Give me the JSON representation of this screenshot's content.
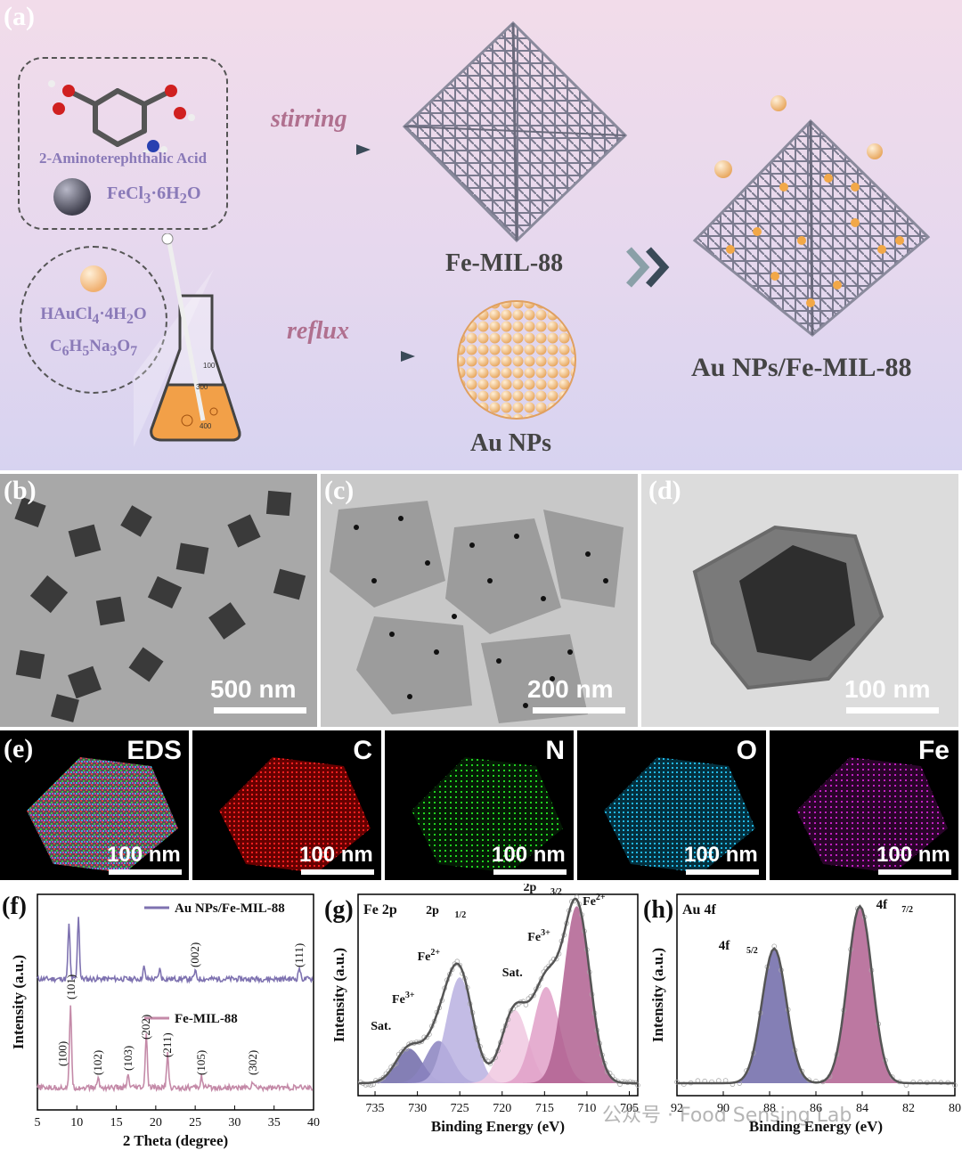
{
  "scheme": {
    "label": "(a)",
    "acid": "2-Aminoterephthalic Acid",
    "fecl3": "FeCl",
    "fecl3_sub1": "3",
    "fecl3_mid": "·6H",
    "fecl3_sub2": "2",
    "fecl3_end": "O",
    "haucl4": "HAuCl",
    "haucl4_sub1": "4",
    "haucl4_mid": "·4H",
    "haucl4_sub2": "2",
    "haucl4_end": "O",
    "citrate_a": "C",
    "citrate_s1": "6",
    "citrate_b": "H",
    "citrate_s2": "5",
    "citrate_c": "Na",
    "citrate_s3": "3",
    "citrate_d": "O",
    "citrate_s4": "7",
    "stirring": "stirring",
    "reflux": "reflux",
    "fe_mil": "Fe-MIL-88",
    "au_nps": "Au NPs",
    "composite": "Au NPs/Fe-MIL-88",
    "flask_marks": [
      "100",
      "300",
      "400"
    ]
  },
  "tem": [
    {
      "label": "(b)",
      "scale": "500 nm"
    },
    {
      "label": "(c)",
      "scale": "200 nm"
    },
    {
      "label": "(d)",
      "scale": "100 nm"
    }
  ],
  "eds": {
    "label": "(e)",
    "maps": [
      {
        "title": "EDS",
        "scale": "100 nm",
        "color": "#c9a0b8"
      },
      {
        "title": "C",
        "scale": "100 nm",
        "color": "#e01818"
      },
      {
        "title": "N",
        "scale": "100 nm",
        "color": "#18b818"
      },
      {
        "title": "O",
        "scale": "100 nm",
        "color": "#18a8d8"
      },
      {
        "title": "Fe",
        "scale": "100 nm",
        "color": "#c018c0"
      }
    ]
  },
  "chart_data": [
    {
      "type": "line",
      "panel": "(f)",
      "xlabel": "2 Theta (degree)",
      "ylabel": "Intensity (a.u.)",
      "xlim": [
        5,
        40
      ],
      "xticks": [
        5,
        10,
        15,
        20,
        25,
        30,
        35,
        40
      ],
      "series": [
        {
          "name": "Au NPs/Fe-MIL-88",
          "color": "#7e72b0",
          "peaks": [
            [
              9.0,
              0.55
            ],
            [
              10.2,
              0.65
            ],
            [
              18.5,
              0.12
            ],
            [
              20.5,
              0.1
            ],
            [
              25.0,
              0.08
            ],
            [
              38.2,
              0.12
            ]
          ]
        },
        {
          "name": "Fe-MIL-88",
          "color": "#c48aa8",
          "peaks": [
            [
              9.2,
              0.85
            ],
            [
              12.7,
              0.1
            ],
            [
              16.5,
              0.12
            ],
            [
              18.8,
              0.55
            ],
            [
              21.5,
              0.35
            ],
            [
              25.8,
              0.12
            ],
            [
              32.3,
              0.06
            ]
          ]
        }
      ],
      "annotations": [
        "(002)",
        "(111)",
        "(100)",
        "(101)",
        "(102)",
        "(103)",
        "(202)",
        "(211)",
        "(105)",
        "(302)"
      ]
    },
    {
      "type": "area",
      "panel": "(g)",
      "title": "Fe 2p",
      "xlabel": "Binding Energy (eV)",
      "ylabel": "Intensity (a.u.)",
      "xlim": [
        737,
        704
      ],
      "xticks": [
        735,
        730,
        725,
        720,
        715,
        710,
        705
      ],
      "components": [
        {
          "label": "Sat.",
          "center": 731.0,
          "height": 0.18,
          "color": "#6e68a8"
        },
        {
          "label": "Fe3+",
          "center": 727.5,
          "height": 0.22,
          "color": "#8a82c0"
        },
        {
          "label": "Fe2+",
          "center": 725.0,
          "height": 0.55,
          "color": "#b8b0e0"
        },
        {
          "label": "Sat.",
          "center": 718.5,
          "height": 0.38,
          "color": "#f0c8e0"
        },
        {
          "label": "Fe3+",
          "center": 714.8,
          "height": 0.5,
          "color": "#e0a0c8"
        },
        {
          "label": "Fe2+",
          "center": 711.2,
          "height": 0.92,
          "color": "#b06090"
        }
      ],
      "annotations": [
        "2p1/2",
        "2p3/2",
        "Fe2+",
        "Fe3+",
        "Sat."
      ]
    },
    {
      "type": "area",
      "panel": "(h)",
      "title": "Au 4f",
      "xlabel": "Binding Energy (eV)",
      "ylabel": "Intensity (a.u.)",
      "xlim": [
        92,
        80
      ],
      "xticks": [
        92,
        90,
        88,
        86,
        84,
        82,
        80
      ],
      "components": [
        {
          "label": "4f 5/2",
          "center": 87.8,
          "height": 0.7,
          "color": "#6e68a8"
        },
        {
          "label": "4f 7/2",
          "center": 84.1,
          "height": 0.92,
          "color": "#b06090"
        }
      ]
    }
  ],
  "legend_f": [
    "Au NPs/Fe-MIL-88",
    "Fe-MIL-88"
  ],
  "watermark": "公众号 · Food Sensing Lab"
}
